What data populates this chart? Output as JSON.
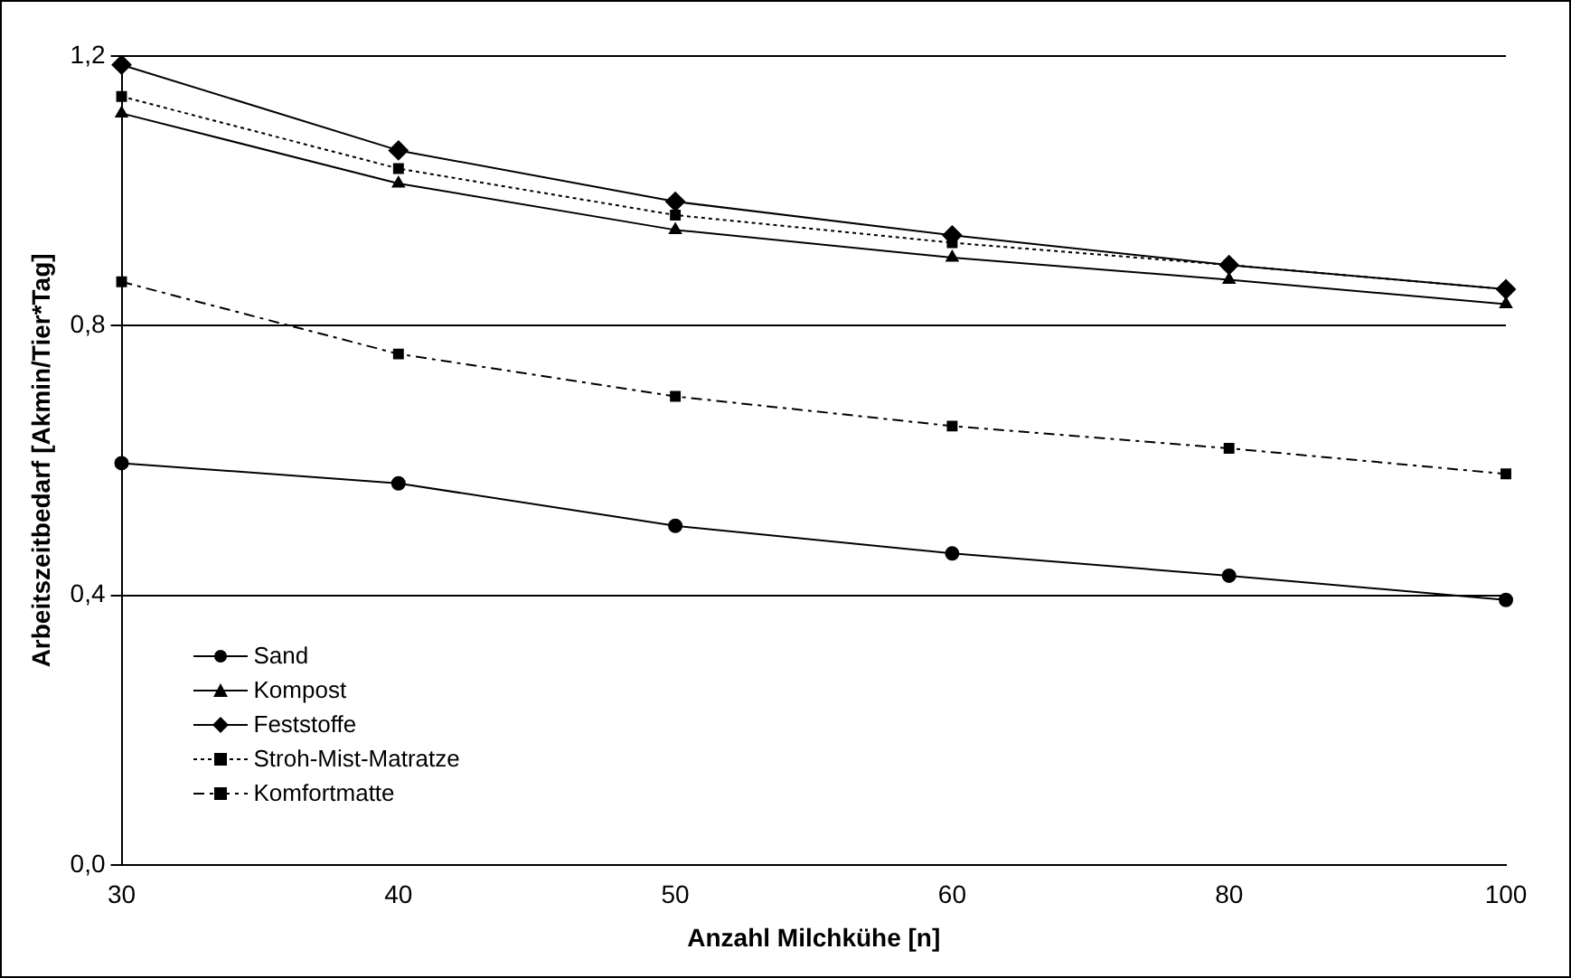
{
  "chart_data": {
    "type": "line",
    "xlabel": "Anzahl Milchkühe [n]",
    "ylabel": "Arbeitszeitbedarf [Akmin/Tier*Tag]",
    "categories": [
      "30",
      "40",
      "50",
      "60",
      "80",
      "100"
    ],
    "ylim": [
      0,
      1.2
    ],
    "yticks": [
      {
        "value": 0,
        "label": "0,0"
      },
      {
        "value": 0.4,
        "label": "0,4"
      },
      {
        "value": 0.8,
        "label": "0,8"
      },
      {
        "value": 1.2,
        "label": "1,2"
      }
    ],
    "grid": "y",
    "legend": "bottom left",
    "series": [
      {
        "name": "Sand",
        "color": "#000000",
        "marker": "circle",
        "line_style": "solid",
        "values": [
          0.596,
          0.566,
          0.503,
          0.462,
          0.429,
          0.393
        ]
      },
      {
        "name": "Kompost",
        "color": "#000000",
        "marker": "triangle",
        "line_style": "solid",
        "values": [
          1.115,
          1.011,
          0.942,
          0.901,
          0.868,
          0.832
        ]
      },
      {
        "name": "Feststoffe",
        "color": "#000000",
        "marker": "diamond",
        "line_style": "solid",
        "values": [
          1.187,
          1.06,
          0.984,
          0.934,
          0.89,
          0.854
        ]
      },
      {
        "name": "Stroh-Mist-Matratze",
        "color": "#000000",
        "marker": "square",
        "line_style": "dotted",
        "values": [
          1.14,
          1.033,
          0.964,
          0.923,
          0.89,
          0.854
        ]
      },
      {
        "name": "Komfortmatte",
        "color": "#000000",
        "marker": "square",
        "line_style": "dashed",
        "values": [
          0.865,
          0.758,
          0.695,
          0.651,
          0.618,
          0.58
        ]
      }
    ]
  }
}
